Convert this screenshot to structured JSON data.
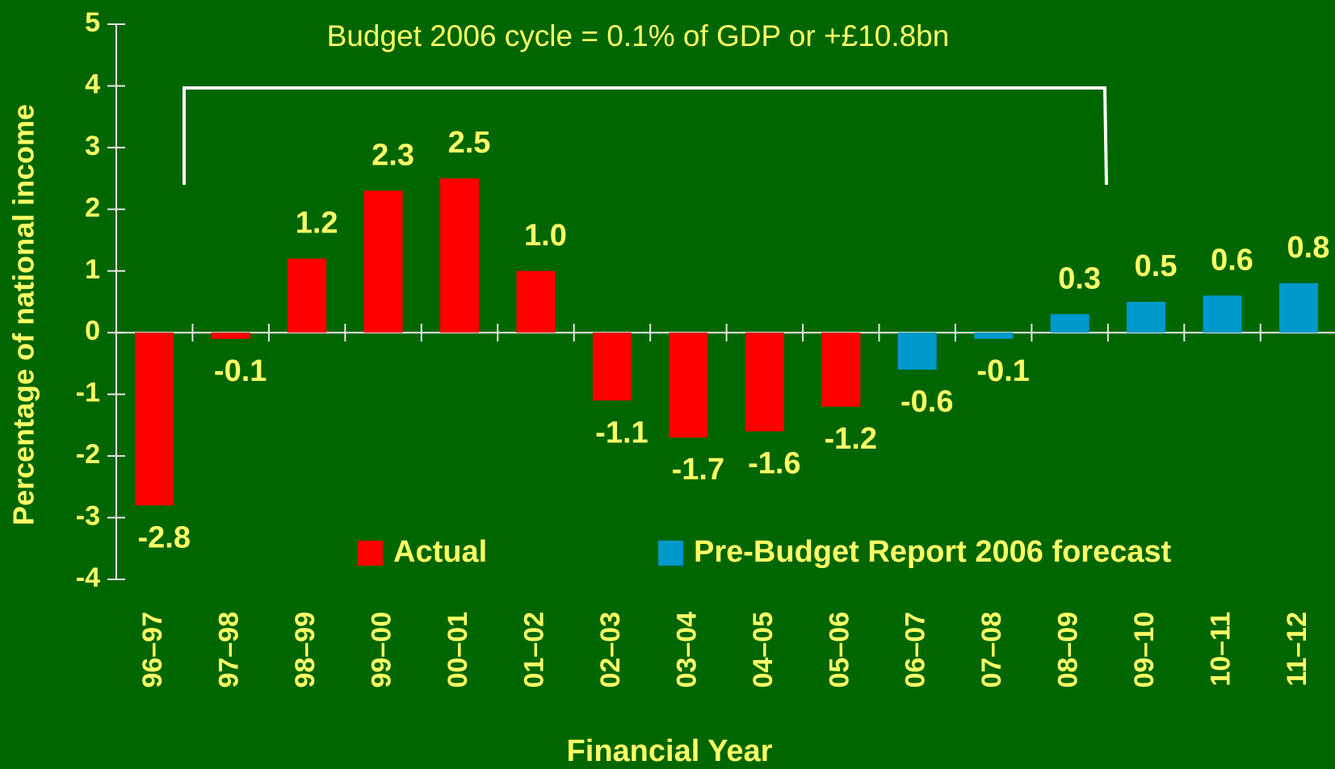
{
  "chart_data": {
    "type": "bar",
    "annotation": "Budget 2006 cycle = 0.1% of GDP or +£10.8bn",
    "x_label": "Financial Year",
    "y_label": "Percentage of national income",
    "categories": [
      "96–97",
      "97–98",
      "98–99",
      "99–00",
      "00–01",
      "01–02",
      "02–03",
      "03–04",
      "04–05",
      "05–06",
      "06–07",
      "07–08",
      "08–09",
      "09–10",
      "10–11",
      "11–12"
    ],
    "series": [
      {
        "name": "Actual",
        "color": "#ff0000",
        "values": [
          -2.8,
          -0.1,
          1.2,
          2.3,
          2.5,
          1,
          -1.1,
          -1.7,
          -1.6,
          -1.2,
          null,
          null,
          null,
          null,
          null,
          null
        ],
        "value_labels": [
          "-2.8",
          "-0.1",
          "1.2",
          "2.3",
          "2.5",
          "1.0",
          "-1.1",
          "-1.7",
          "-1.6",
          "-1.2",
          null,
          null,
          null,
          null,
          null,
          null
        ]
      },
      {
        "name": "Pre-Budget Report 2006 forecast",
        "color": "#0099cc",
        "values": [
          null,
          null,
          null,
          null,
          null,
          null,
          null,
          null,
          null,
          null,
          -0.6,
          -0.1,
          0.3,
          0.5,
          0.6,
          0.8
        ],
        "value_labels": [
          null,
          null,
          null,
          null,
          null,
          null,
          null,
          null,
          null,
          null,
          "-0.6",
          "-0.1",
          "0.3",
          "0.5",
          "0.6",
          "0.8"
        ]
      }
    ],
    "ylim": [
      -4,
      5
    ],
    "yticks": [
      -4,
      -3,
      -2,
      -1,
      0,
      1,
      2,
      3,
      4,
      5
    ],
    "grid": false,
    "legend": "bottom"
  }
}
